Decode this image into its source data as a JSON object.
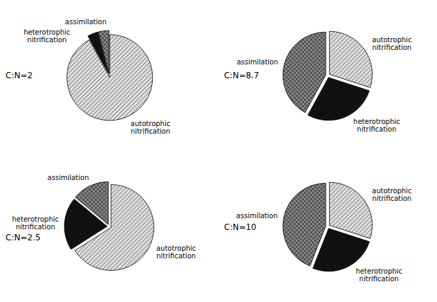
{
  "chart_data": [
    {
      "type": "pie",
      "annotations": [
        "C:N=2"
      ],
      "categories": [
        "assimilation",
        "heterotrophic\nnitrification",
        "autotrophic\nnitrification"
      ],
      "values": [
        4,
        4,
        92
      ],
      "colors": [
        "#888888",
        "#111111",
        "#e0e0e0"
      ]
    },
    {
      "type": "pie",
      "annotations": [
        "C:N=8.7"
      ],
      "categories": [
        "assimilation",
        "heterotrophic\nnitrification",
        "autotrophic\nnitrification"
      ],
      "values": [
        42,
        28,
        30
      ],
      "colors": [
        "#888888",
        "#111111",
        "#e0e0e0"
      ]
    },
    {
      "type": "pie",
      "annotations": [
        "C:N=2.5"
      ],
      "categories": [
        "assimilation",
        "heterotrophic\nnitrification",
        "autotrophic\nnitrification"
      ],
      "values": [
        14,
        20,
        66
      ],
      "colors": [
        "#888888",
        "#111111",
        "#e0e0e0"
      ]
    },
    {
      "type": "pie",
      "annotations": [
        "C:N=10"
      ],
      "categories": [
        "assimilation",
        "heterotrophic\nnitrification",
        "autotrophic\nnitrification"
      ],
      "values": [
        44,
        26,
        30
      ],
      "colors": [
        "#888888",
        "#111111",
        "#e0e0e0"
      ]
    }
  ]
}
